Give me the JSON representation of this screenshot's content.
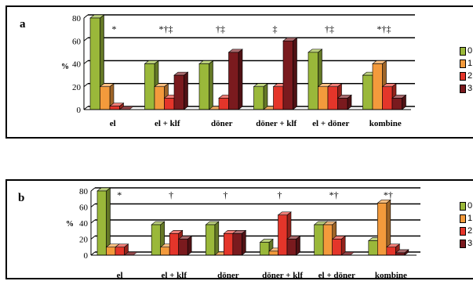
{
  "chart_data": [
    {
      "panel": "a",
      "type": "bar",
      "categories": [
        "el",
        "el + klf",
        "döner",
        "döner + klf",
        "el + döner",
        "kombine"
      ],
      "ylabel": "%",
      "ylim": [
        0,
        80
      ],
      "yticks": [
        "0",
        "20",
        "40",
        "60",
        "80"
      ],
      "grid": true,
      "series": [
        {
          "name": "0",
          "color": "#9ab83a",
          "values": [
            80,
            40,
            40,
            20,
            50,
            30
          ]
        },
        {
          "name": "1",
          "color": "#f39a3c",
          "values": [
            20,
            20,
            0,
            0,
            20,
            40
          ]
        },
        {
          "name": "2",
          "color": "#e4352a",
          "values": [
            3,
            10,
            10,
            20,
            20,
            20
          ]
        },
        {
          "name": "3",
          "color": "#7a1a1e",
          "values": [
            0,
            30,
            50,
            60,
            10,
            10
          ]
        }
      ],
      "annotations": [
        "*",
        "*†‡",
        "†‡",
        "‡",
        "†‡",
        "*†‡"
      ],
      "legend": [
        "0",
        "1",
        "2",
        "3"
      ]
    },
    {
      "panel": "b",
      "type": "bar",
      "categories": [
        "el",
        "el + klf",
        "döner",
        "döner + klf",
        "el + döner",
        "kombine"
      ],
      "ylabel": "%",
      "ylim": [
        0,
        80
      ],
      "yticks": [
        "0",
        "20",
        "40",
        "60",
        "80"
      ],
      "grid": true,
      "series": [
        {
          "name": "0",
          "color": "#9ab83a",
          "values": [
            80,
            38,
            38,
            16,
            38,
            18
          ]
        },
        {
          "name": "1",
          "color": "#f39a3c",
          "values": [
            10,
            10,
            0,
            5,
            38,
            65
          ]
        },
        {
          "name": "2",
          "color": "#e4352a",
          "values": [
            10,
            27,
            27,
            50,
            20,
            10
          ]
        },
        {
          "name": "3",
          "color": "#7a1a1e",
          "values": [
            0,
            20,
            27,
            20,
            0,
            3
          ]
        }
      ],
      "annotations": [
        "*",
        "†",
        "†",
        "†",
        "*†",
        "*†"
      ],
      "legend": [
        "0",
        "1",
        "2",
        "3"
      ]
    }
  ]
}
